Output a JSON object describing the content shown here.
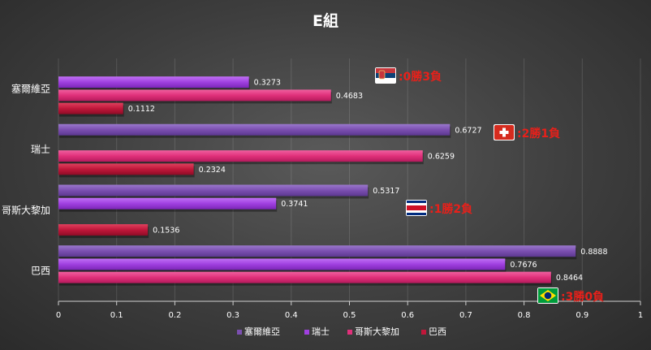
{
  "chart_data": {
    "type": "bar",
    "orientation": "horizontal",
    "title": "E組",
    "categories": [
      "塞爾維亞",
      "瑞士",
      "哥斯大黎加",
      "巴西"
    ],
    "series": [
      {
        "name": "塞爾維亞",
        "color": "#7b4fb0",
        "values": [
          null,
          0.6727,
          0.5317,
          0.8888
        ]
      },
      {
        "name": "瑞士",
        "color": "#a040e0",
        "values": [
          0.3273,
          null,
          0.3741,
          0.7676
        ]
      },
      {
        "name": "哥斯大黎加",
        "color": "#e0307a",
        "values": [
          0.4683,
          0.6259,
          null,
          0.8464
        ]
      },
      {
        "name": "巴西",
        "color": "#c0173a",
        "values": [
          0.1112,
          0.2324,
          0.1536,
          null
        ]
      }
    ],
    "xlim": [
      0,
      1
    ],
    "xticks": [
      "0",
      "0.1",
      "0.2",
      "0.3",
      "0.4",
      "0.5",
      "0.6",
      "0.7",
      "0.8",
      "0.9",
      "1"
    ],
    "grid": true,
    "legend": "bottom",
    "annotations": [
      {
        "category": "塞爾維亞",
        "flag": "serbia-flag-icon",
        "text": ":0勝3負",
        "color": "#e8201a"
      },
      {
        "category": "瑞士",
        "flag": "switzerland-flag-icon",
        "text": ":2勝1負",
        "color": "#e8201a"
      },
      {
        "category": "哥斯大黎加",
        "flag": "costa-rica-flag-icon",
        "text": ":1勝2負",
        "color": "#e8201a"
      },
      {
        "category": "巴西",
        "flag": "brazil-flag-icon",
        "text": ":3勝0負",
        "color": "#e8201a"
      }
    ]
  }
}
